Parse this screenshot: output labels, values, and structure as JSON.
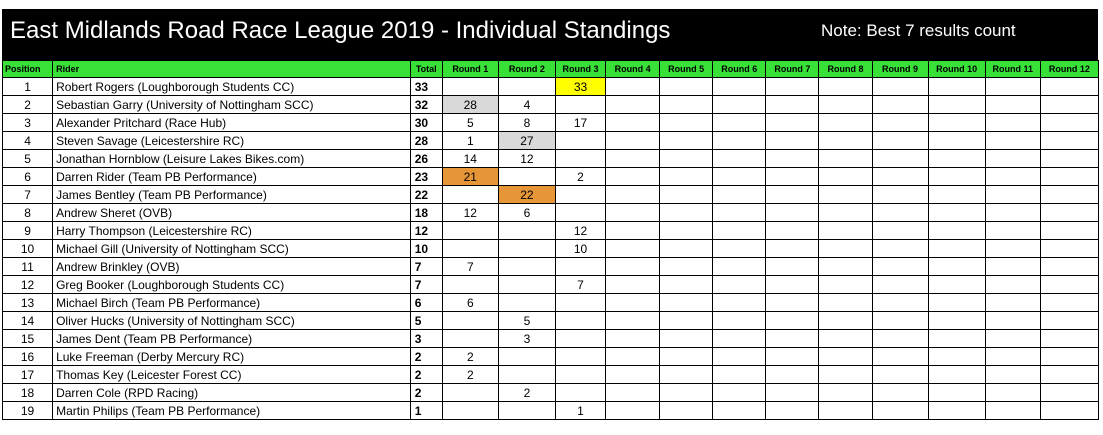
{
  "header": {
    "title": "East Midlands Road Race League 2019 - Individual Standings",
    "note": "Note: Best 7 results count"
  },
  "columns": [
    "Position",
    "Rider",
    "Total",
    "Round 1",
    "Round 2",
    "Round 3",
    "Round 4",
    "Round 5",
    "Round 6",
    "Round 7",
    "Round 8",
    "Round 9",
    "Round 10",
    "Round 11",
    "Round 12"
  ],
  "highlight_colors": {
    "gold": "#ffff00",
    "silver": "#d9d9d9",
    "bronze": "#e69537",
    "header_green": "#38e038"
  },
  "rows": [
    {
      "position": "1",
      "rider": "Robert Rogers (Loughborough Students CC)",
      "total": "33",
      "rounds": [
        "",
        "",
        "33",
        "",
        "",
        "",
        "",
        "",
        "",
        "",
        "",
        ""
      ],
      "highlights": [
        "",
        "",
        "gold",
        "",
        "",
        "",
        "",
        "",
        "",
        "",
        "",
        ""
      ]
    },
    {
      "position": "2",
      "rider": "Sebastian Garry (University of Nottingham SCC)",
      "total": "32",
      "rounds": [
        "28",
        "4",
        "",
        "",
        "",
        "",
        "",
        "",
        "",
        "",
        "",
        ""
      ],
      "highlights": [
        "silver",
        "",
        "",
        "",
        "",
        "",
        "",
        "",
        "",
        "",
        "",
        ""
      ]
    },
    {
      "position": "3",
      "rider": "Alexander Pritchard (Race Hub)",
      "total": "30",
      "rounds": [
        "5",
        "8",
        "17",
        "",
        "",
        "",
        "",
        "",
        "",
        "",
        "",
        ""
      ],
      "highlights": [
        "",
        "",
        "",
        "",
        "",
        "",
        "",
        "",
        "",
        "",
        "",
        ""
      ]
    },
    {
      "position": "4",
      "rider": "Steven Savage (Leicestershire RC)",
      "total": "28",
      "rounds": [
        "1",
        "27",
        "",
        "",
        "",
        "",
        "",
        "",
        "",
        "",
        "",
        ""
      ],
      "highlights": [
        "",
        "silver",
        "",
        "",
        "",
        "",
        "",
        "",
        "",
        "",
        "",
        ""
      ]
    },
    {
      "position": "5",
      "rider": "Jonathan Hornblow (Leisure Lakes Bikes.com)",
      "total": "26",
      "rounds": [
        "14",
        "12",
        "",
        "",
        "",
        "",
        "",
        "",
        "",
        "",
        "",
        ""
      ],
      "highlights": [
        "",
        "",
        "",
        "",
        "",
        "",
        "",
        "",
        "",
        "",
        "",
        ""
      ]
    },
    {
      "position": "6",
      "rider": "Darren Rider (Team PB Performance)",
      "total": "23",
      "rounds": [
        "21",
        "",
        "2",
        "",
        "",
        "",
        "",
        "",
        "",
        "",
        "",
        ""
      ],
      "highlights": [
        "bronze",
        "",
        "",
        "",
        "",
        "",
        "",
        "",
        "",
        "",
        "",
        ""
      ]
    },
    {
      "position": "7",
      "rider": "James Bentley (Team PB Performance)",
      "total": "22",
      "rounds": [
        "",
        "22",
        "",
        "",
        "",
        "",
        "",
        "",
        "",
        "",
        "",
        ""
      ],
      "highlights": [
        "",
        "bronze",
        "",
        "",
        "",
        "",
        "",
        "",
        "",
        "",
        "",
        ""
      ]
    },
    {
      "position": "8",
      "rider": "Andrew Sheret (OVB)",
      "total": "18",
      "rounds": [
        "12",
        "6",
        "",
        "",
        "",
        "",
        "",
        "",
        "",
        "",
        "",
        ""
      ],
      "highlights": [
        "",
        "",
        "",
        "",
        "",
        "",
        "",
        "",
        "",
        "",
        "",
        ""
      ]
    },
    {
      "position": "9",
      "rider": "Harry Thompson (Leicestershire RC)",
      "total": "12",
      "rounds": [
        "",
        "",
        "12",
        "",
        "",
        "",
        "",
        "",
        "",
        "",
        "",
        ""
      ],
      "highlights": [
        "",
        "",
        "",
        "",
        "",
        "",
        "",
        "",
        "",
        "",
        "",
        ""
      ]
    },
    {
      "position": "10",
      "rider": "Michael Gill (University of Nottingham SCC)",
      "total": "10",
      "rounds": [
        "",
        "",
        "10",
        "",
        "",
        "",
        "",
        "",
        "",
        "",
        "",
        ""
      ],
      "highlights": [
        "",
        "",
        "",
        "",
        "",
        "",
        "",
        "",
        "",
        "",
        "",
        ""
      ]
    },
    {
      "position": "11",
      "rider": "Andrew Brinkley (OVB)",
      "total": "7",
      "rounds": [
        "7",
        "",
        "",
        "",
        "",
        "",
        "",
        "",
        "",
        "",
        "",
        ""
      ],
      "highlights": [
        "",
        "",
        "",
        "",
        "",
        "",
        "",
        "",
        "",
        "",
        "",
        ""
      ]
    },
    {
      "position": "12",
      "rider": "Greg Booker (Loughborough Students CC)",
      "total": "7",
      "rounds": [
        "",
        "",
        "7",
        "",
        "",
        "",
        "",
        "",
        "",
        "",
        "",
        ""
      ],
      "highlights": [
        "",
        "",
        "",
        "",
        "",
        "",
        "",
        "",
        "",
        "",
        "",
        ""
      ]
    },
    {
      "position": "13",
      "rider": "Michael Birch (Team PB Performance)",
      "total": "6",
      "rounds": [
        "6",
        "",
        "",
        "",
        "",
        "",
        "",
        "",
        "",
        "",
        "",
        ""
      ],
      "highlights": [
        "",
        "",
        "",
        "",
        "",
        "",
        "",
        "",
        "",
        "",
        "",
        ""
      ]
    },
    {
      "position": "14",
      "rider": "Oliver Hucks (University of Nottingham SCC)",
      "total": "5",
      "rounds": [
        "",
        "5",
        "",
        "",
        "",
        "",
        "",
        "",
        "",
        "",
        "",
        ""
      ],
      "highlights": [
        "",
        "",
        "",
        "",
        "",
        "",
        "",
        "",
        "",
        "",
        "",
        ""
      ]
    },
    {
      "position": "15",
      "rider": "James Dent (Team PB Performance)",
      "total": "3",
      "rounds": [
        "",
        "3",
        "",
        "",
        "",
        "",
        "",
        "",
        "",
        "",
        "",
        ""
      ],
      "highlights": [
        "",
        "",
        "",
        "",
        "",
        "",
        "",
        "",
        "",
        "",
        "",
        ""
      ]
    },
    {
      "position": "16",
      "rider": "Luke Freeman (Derby Mercury RC)",
      "total": "2",
      "rounds": [
        "2",
        "",
        "",
        "",
        "",
        "",
        "",
        "",
        "",
        "",
        "",
        ""
      ],
      "highlights": [
        "",
        "",
        "",
        "",
        "",
        "",
        "",
        "",
        "",
        "",
        "",
        ""
      ]
    },
    {
      "position": "17",
      "rider": "Thomas Key (Leicester Forest CC)",
      "total": "2",
      "rounds": [
        "2",
        "",
        "",
        "",
        "",
        "",
        "",
        "",
        "",
        "",
        "",
        ""
      ],
      "highlights": [
        "",
        "",
        "",
        "",
        "",
        "",
        "",
        "",
        "",
        "",
        "",
        ""
      ]
    },
    {
      "position": "18",
      "rider": "Darren Cole (RPD Racing)",
      "total": "2",
      "rounds": [
        "",
        "2",
        "",
        "",
        "",
        "",
        "",
        "",
        "",
        "",
        "",
        ""
      ],
      "highlights": [
        "",
        "",
        "",
        "",
        "",
        "",
        "",
        "",
        "",
        "",
        "",
        ""
      ]
    },
    {
      "position": "19",
      "rider": "Martin Philips (Team PB Performance)",
      "total": "1",
      "rounds": [
        "",
        "",
        "1",
        "",
        "",
        "",
        "",
        "",
        "",
        "",
        "",
        ""
      ],
      "highlights": [
        "",
        "",
        "",
        "",
        "",
        "",
        "",
        "",
        "",
        "",
        "",
        ""
      ]
    }
  ]
}
